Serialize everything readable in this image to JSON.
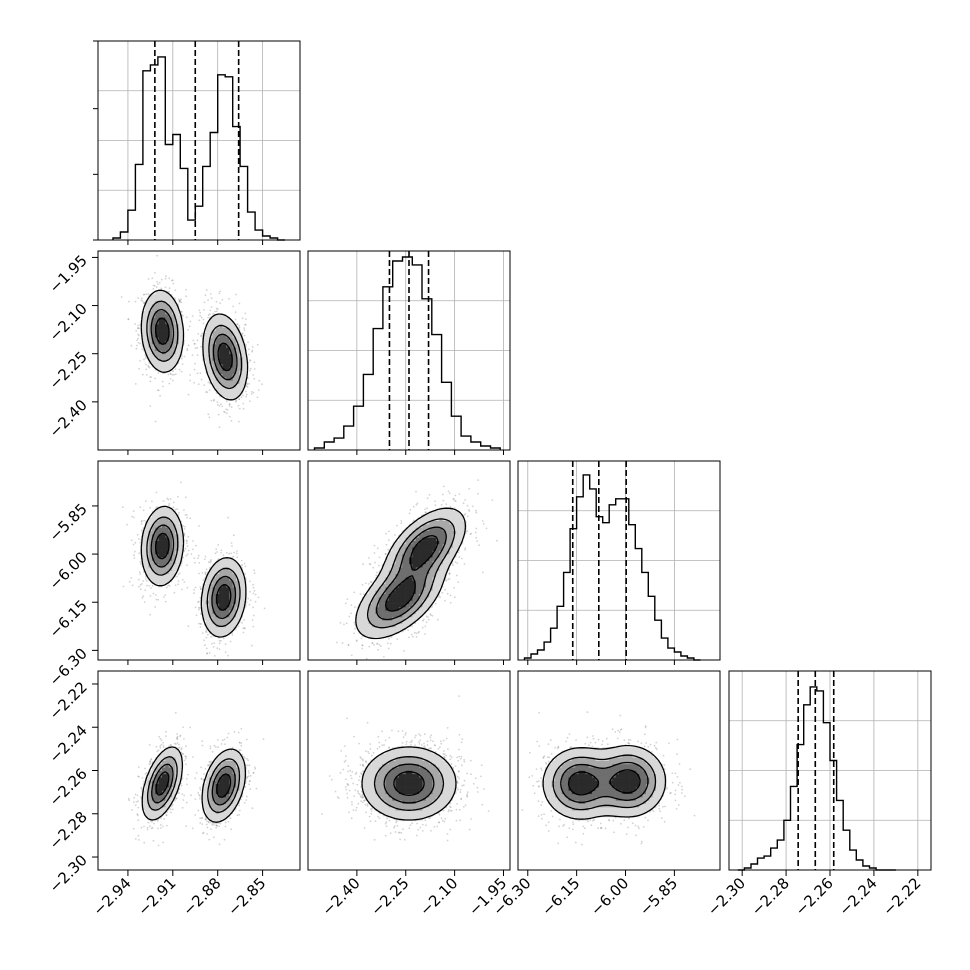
{
  "figure": {
    "background": "#ffffff"
  },
  "style": {
    "hist_color": "#000000",
    "grid_color": "#b0b0b0",
    "contour_color": "#000000",
    "scatter_color": "#808080"
  },
  "chart_data": {
    "type": "corner",
    "params": [
      {
        "range": [
          -2.96,
          -2.825
        ],
        "ticks": [
          "−2.94",
          "−2.91",
          "−2.88",
          "−2.85"
        ],
        "tick_values": [
          -2.94,
          -2.91,
          -2.88,
          -2.85
        ]
      },
      {
        "range": [
          -2.55,
          -1.93
        ],
        "ticks": [
          "−1.95",
          "−2.10",
          "−2.25",
          "−2.40"
        ],
        "tick_values": [
          -1.95,
          -2.1,
          -2.25,
          -2.4
        ]
      },
      {
        "range": [
          -6.33,
          -5.71
        ],
        "ticks": [
          "−5.85",
          "−6.00",
          "−6.15",
          "−6.30"
        ],
        "tick_values": [
          -5.85,
          -6.0,
          -6.15,
          -6.3
        ]
      },
      {
        "range": [
          -2.306,
          -2.214
        ],
        "ticks": [
          "−2.22",
          "−2.24",
          "−2.26",
          "−2.28",
          "−2.30"
        ],
        "tick_values": [
          -2.22,
          -2.24,
          -2.26,
          -2.28,
          -2.3
        ]
      }
    ],
    "x_tick_labels": [
      [
        "−2.94",
        "−2.91",
        "−2.88",
        "−2.85"
      ],
      [
        "−2.40",
        "−2.25",
        "−2.10",
        "−1.95"
      ],
      [
        "−6.30",
        "−6.15",
        "−6.00",
        "−5.85"
      ],
      [
        "−2.30",
        "−2.28",
        "−2.26",
        "−2.24",
        "−2.22"
      ]
    ],
    "y_tick_labels": [
      [],
      [
        "−1.95",
        "−2.10",
        "−2.25",
        "−2.40"
      ],
      [
        "−5.85",
        "−6.00",
        "−6.15",
        "−6.30"
      ],
      [
        "−2.22",
        "−2.24",
        "−2.26",
        "−2.28",
        "−2.30"
      ]
    ],
    "histograms": [
      {
        "bins": [
          -2.95,
          -2.945,
          -2.94,
          -2.935,
          -2.93,
          -2.925,
          -2.92,
          -2.915,
          -2.91,
          -2.905,
          -2.9,
          -2.895,
          -2.89,
          -2.885,
          -2.88,
          -2.875,
          -2.87,
          -2.865,
          -2.86,
          -2.855,
          -2.85,
          -2.845,
          -2.84,
          -2.835
        ],
        "counts": [
          0.01,
          0.04,
          0.15,
          0.38,
          0.85,
          0.88,
          0.92,
          0.48,
          0.53,
          0.36,
          0.1,
          0.17,
          0.37,
          0.54,
          0.83,
          0.82,
          0.57,
          0.37,
          0.14,
          0.05,
          0.02,
          0.01,
          0.0
        ],
        "quantiles": [
          -2.922,
          -2.895,
          -2.866
        ],
        "grid_y": [
          0.25,
          0.5,
          0.75
        ]
      },
      {
        "bins": [
          -2.53,
          -2.5,
          -2.47,
          -2.44,
          -2.41,
          -2.38,
          -2.35,
          -2.32,
          -2.29,
          -2.26,
          -2.23,
          -2.2,
          -2.17,
          -2.14,
          -2.11,
          -2.08,
          -2.05,
          -2.02,
          -1.99,
          -1.96
        ],
        "counts": [
          0.01,
          0.04,
          0.06,
          0.12,
          0.22,
          0.38,
          0.61,
          0.82,
          0.95,
          0.97,
          0.93,
          0.76,
          0.58,
          0.34,
          0.17,
          0.07,
          0.04,
          0.02,
          0.01
        ],
        "quantiles": [
          -2.3,
          -2.24,
          -2.18
        ],
        "grid_y": [
          0.25,
          0.5,
          0.75
        ]
      },
      {
        "bins": [
          -6.31,
          -6.29,
          -6.27,
          -6.25,
          -6.23,
          -6.21,
          -6.19,
          -6.17,
          -6.15,
          -6.13,
          -6.11,
          -6.09,
          -6.07,
          -6.05,
          -6.03,
          -6.01,
          -5.99,
          -5.97,
          -5.95,
          -5.93,
          -5.91,
          -5.89,
          -5.87,
          -5.85,
          -5.83,
          -5.81,
          -5.79,
          -5.77
        ],
        "counts": [
          0.01,
          0.03,
          0.05,
          0.09,
          0.16,
          0.27,
          0.44,
          0.66,
          0.82,
          0.93,
          0.86,
          0.72,
          0.69,
          0.78,
          0.81,
          0.81,
          0.68,
          0.56,
          0.44,
          0.32,
          0.2,
          0.11,
          0.06,
          0.04,
          0.02,
          0.01,
          0.0
        ],
        "quantiles": [
          -6.162,
          -6.082,
          -5.998
        ],
        "grid_y": [
          0.25,
          0.5,
          0.75
        ]
      },
      {
        "bins": [
          -2.302,
          -2.299,
          -2.296,
          -2.293,
          -2.29,
          -2.287,
          -2.284,
          -2.281,
          -2.278,
          -2.275,
          -2.272,
          -2.269,
          -2.266,
          -2.263,
          -2.26,
          -2.257,
          -2.254,
          -2.251,
          -2.248,
          -2.245,
          -2.242,
          -2.239,
          -2.236,
          -2.233,
          -2.23
        ],
        "counts": [
          0.0,
          0.01,
          0.03,
          0.06,
          0.07,
          0.11,
          0.15,
          0.25,
          0.42,
          0.63,
          0.83,
          0.92,
          0.9,
          0.74,
          0.55,
          0.35,
          0.2,
          0.1,
          0.05,
          0.02,
          0.01,
          0.0,
          0.0,
          0.0
        ],
        "quantiles": [
          -2.2745,
          -2.2667,
          -2.2583
        ],
        "grid_y": [
          0.25,
          0.5,
          0.75
        ]
      }
    ],
    "panels_2d": [
      {
        "row": 1,
        "col": 0,
        "modes": [
          {
            "center": [
              -2.917,
              -2.18
            ],
            "sigma": [
              0.0068,
              0.062
            ],
            "rho": -0.1,
            "weight": 0.5
          },
          {
            "center": [
              -2.875,
              -2.26
            ],
            "sigma": [
              0.0072,
              0.065
            ],
            "rho": -0.25,
            "weight": 0.5
          }
        ]
      },
      {
        "row": 2,
        "col": 0,
        "modes": [
          {
            "center": [
              -2.917,
              -5.975
            ],
            "sigma": [
              0.0068,
              0.06
            ],
            "rho": 0.1,
            "weight": 0.5
          },
          {
            "center": [
              -2.876,
              -6.135
            ],
            "sigma": [
              0.0072,
              0.06
            ],
            "rho": 0.15,
            "weight": 0.5
          }
        ]
      },
      {
        "row": 2,
        "col": 1,
        "modes": [
          {
            "center": [
              -2.19,
              -5.98
            ],
            "sigma": [
              0.06,
              0.06
            ],
            "rho": 0.55,
            "weight": 0.5
          },
          {
            "center": [
              -2.27,
              -6.14
            ],
            "sigma": [
              0.065,
              0.06
            ],
            "rho": 0.55,
            "weight": 0.5
          }
        ]
      },
      {
        "row": 3,
        "col": 0,
        "modes": [
          {
            "center": [
              -2.917,
              -2.266
            ],
            "sigma": [
              0.0065,
              0.0082
            ],
            "rho": 0.5,
            "weight": 0.5
          },
          {
            "center": [
              -2.876,
              -2.267
            ],
            "sigma": [
              0.007,
              0.0082
            ],
            "rho": 0.35,
            "weight": 0.5
          }
        ]
      },
      {
        "row": 3,
        "col": 1,
        "modes": [
          {
            "center": [
              -2.24,
              -2.266
            ],
            "sigma": [
              0.07,
              0.0082
            ],
            "rho": 0.0,
            "weight": 1.0
          }
        ]
      },
      {
        "row": 3,
        "col": 2,
        "modes": [
          {
            "center": [
              -6.14,
              -2.266
            ],
            "sigma": [
              0.055,
              0.008
            ],
            "rho": 0.0,
            "weight": 0.5
          },
          {
            "center": [
              -5.99,
              -2.265
            ],
            "sigma": [
              0.055,
              0.008
            ],
            "rho": 0.0,
            "weight": 0.5
          }
        ]
      }
    ]
  }
}
